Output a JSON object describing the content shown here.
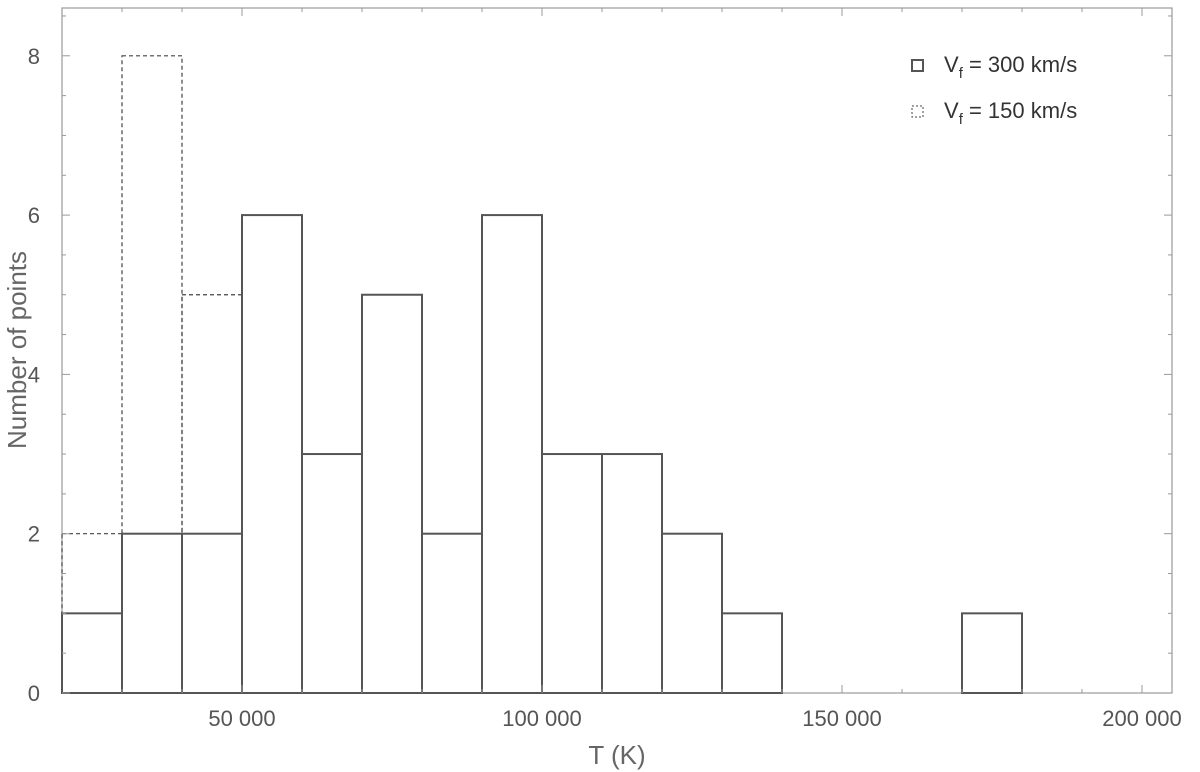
{
  "chart_data": {
    "type": "histogram",
    "xlabel": "T  (K)",
    "ylabel": "Number  of  points",
    "xlim": [
      20000,
      205000
    ],
    "ylim": [
      0,
      8.6
    ],
    "bin_width": 10000,
    "x_ticks": [
      50000,
      100000,
      150000,
      200000
    ],
    "x_tick_labels": [
      "50 000",
      "100 000",
      "150 000",
      "200 000"
    ],
    "y_ticks": [
      0,
      2,
      4,
      6,
      8
    ],
    "y_tick_labels": [
      "0",
      "2",
      "4",
      "6",
      "8"
    ],
    "grid": false,
    "legend_position": "top-right",
    "series": [
      {
        "name": "V",
        "name_subscript": "f",
        "name_suffix": "= 300 km/s",
        "style": "solid",
        "color": "#555555",
        "bins": [
          {
            "x0": 20000,
            "x1": 30000,
            "count": 1
          },
          {
            "x0": 30000,
            "x1": 40000,
            "count": 2
          },
          {
            "x0": 40000,
            "x1": 50000,
            "count": 2
          },
          {
            "x0": 50000,
            "x1": 60000,
            "count": 6
          },
          {
            "x0": 60000,
            "x1": 70000,
            "count": 3
          },
          {
            "x0": 70000,
            "x1": 80000,
            "count": 5
          },
          {
            "x0": 80000,
            "x1": 90000,
            "count": 2
          },
          {
            "x0": 90000,
            "x1": 100000,
            "count": 6
          },
          {
            "x0": 100000,
            "x1": 110000,
            "count": 3
          },
          {
            "x0": 110000,
            "x1": 120000,
            "count": 3
          },
          {
            "x0": 120000,
            "x1": 130000,
            "count": 2
          },
          {
            "x0": 130000,
            "x1": 140000,
            "count": 1
          },
          {
            "x0": 170000,
            "x1": 180000,
            "count": 1
          }
        ]
      },
      {
        "name": "V",
        "name_subscript": "f",
        "name_suffix": "= 150 km/s",
        "style": "dashed",
        "color": "#444444",
        "bins": [
          {
            "x0": 20000,
            "x1": 30000,
            "count": 2
          },
          {
            "x0": 30000,
            "x1": 40000,
            "count": 8
          },
          {
            "x0": 40000,
            "x1": 50000,
            "count": 5
          },
          {
            "x0": 50000,
            "x1": 60000,
            "count": 6
          },
          {
            "x0": 60000,
            "x1": 70000,
            "count": 3
          },
          {
            "x0": 70000,
            "x1": 80000,
            "count": 5
          },
          {
            "x0": 80000,
            "x1": 90000,
            "count": 2
          },
          {
            "x0": 90000,
            "x1": 100000,
            "count": 6
          },
          {
            "x0": 100000,
            "x1": 110000,
            "count": 3
          },
          {
            "x0": 110000,
            "x1": 120000,
            "count": 3
          },
          {
            "x0": 120000,
            "x1": 130000,
            "count": 2
          },
          {
            "x0": 130000,
            "x1": 140000,
            "count": 1
          },
          {
            "x0": 170000,
            "x1": 180000,
            "count": 1
          }
        ]
      }
    ]
  }
}
